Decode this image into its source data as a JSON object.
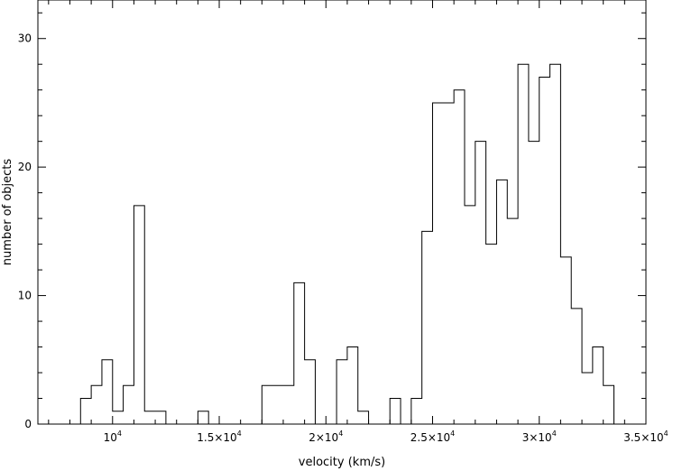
{
  "chart_data": {
    "type": "bar",
    "style": "step-histogram",
    "xlabel": "velocity (km/s)",
    "ylabel": "number of objects",
    "xlim": [
      6500,
      35000
    ],
    "ylim": [
      0,
      33
    ],
    "bin_width": 500,
    "x_ticks": [
      {
        "value": 10000,
        "mantissa": "10",
        "exp": "4"
      },
      {
        "value": 15000,
        "mantissa": "1.5×10",
        "exp": "4"
      },
      {
        "value": 20000,
        "mantissa": "2×10",
        "exp": "4"
      },
      {
        "value": 25000,
        "mantissa": "2.5×10",
        "exp": "4"
      },
      {
        "value": 30000,
        "mantissa": "3×10",
        "exp": "4"
      },
      {
        "value": 35000,
        "mantissa": "3.5×10",
        "exp": "4"
      }
    ],
    "y_ticks": [
      "0",
      "10",
      "20",
      "30"
    ],
    "bins": [
      {
        "x": 8500,
        "y": 2
      },
      {
        "x": 9000,
        "y": 3
      },
      {
        "x": 9500,
        "y": 5
      },
      {
        "x": 10000,
        "y": 1
      },
      {
        "x": 10500,
        "y": 3
      },
      {
        "x": 11000,
        "y": 17
      },
      {
        "x": 11500,
        "y": 1
      },
      {
        "x": 12000,
        "y": 1
      },
      {
        "x": 14000,
        "y": 1
      },
      {
        "x": 17000,
        "y": 3
      },
      {
        "x": 17500,
        "y": 3
      },
      {
        "x": 18000,
        "y": 3
      },
      {
        "x": 18500,
        "y": 11
      },
      {
        "x": 19000,
        "y": 5
      },
      {
        "x": 20500,
        "y": 5
      },
      {
        "x": 21000,
        "y": 6
      },
      {
        "x": 21500,
        "y": 1
      },
      {
        "x": 23000,
        "y": 2
      },
      {
        "x": 24000,
        "y": 2
      },
      {
        "x": 24500,
        "y": 15
      },
      {
        "x": 25000,
        "y": 25
      },
      {
        "x": 25500,
        "y": 25
      },
      {
        "x": 26000,
        "y": 26
      },
      {
        "x": 26500,
        "y": 17
      },
      {
        "x": 27000,
        "y": 22
      },
      {
        "x": 27500,
        "y": 14
      },
      {
        "x": 28000,
        "y": 19
      },
      {
        "x": 28500,
        "y": 16
      },
      {
        "x": 29000,
        "y": 28
      },
      {
        "x": 29500,
        "y": 22
      },
      {
        "x": 30000,
        "y": 27
      },
      {
        "x": 30500,
        "y": 28
      },
      {
        "x": 31000,
        "y": 13
      },
      {
        "x": 31500,
        "y": 9
      },
      {
        "x": 32000,
        "y": 4
      },
      {
        "x": 32500,
        "y": 6
      },
      {
        "x": 33000,
        "y": 3
      }
    ]
  }
}
